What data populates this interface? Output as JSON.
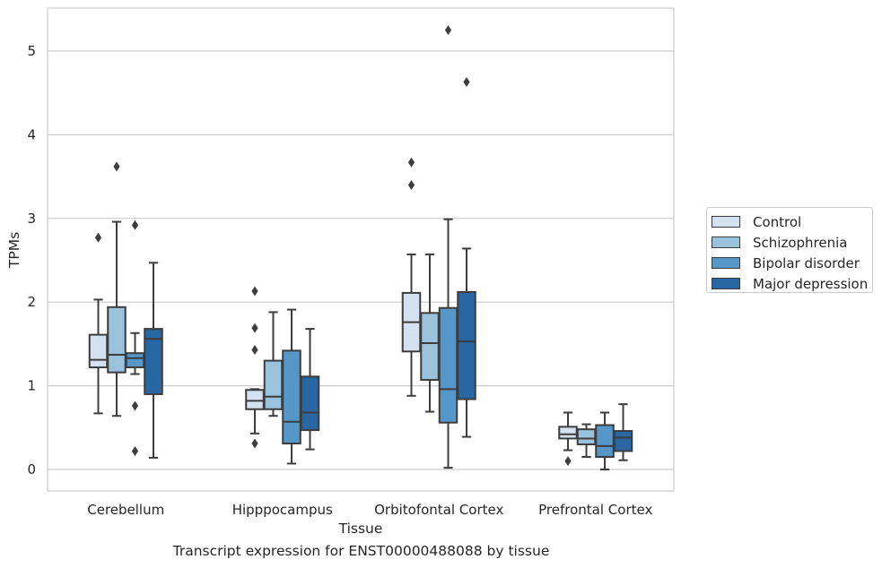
{
  "caption": "Transcript expression for ENST00000488088 by tissue",
  "chart_data": {
    "type": "box",
    "xlabel": "Tissue",
    "ylabel": "TPMs",
    "ylim": [
      -0.25,
      5.52
    ],
    "yticks": [
      0,
      1,
      2,
      3,
      4,
      5
    ],
    "grid": "horizontal",
    "legend_position": "right",
    "categories": [
      "Cerebellum",
      "Hipppocampus",
      "Orbitofontal Cortex",
      "Prefrontal Cortex"
    ],
    "series": [
      {
        "name": "Control",
        "color": "#d4e1f0",
        "boxes": [
          {
            "whisker_low": 0.67,
            "q1": 1.22,
            "median": 1.31,
            "q3": 1.61,
            "whisker_high": 2.03,
            "outliers": [
              2.77
            ]
          },
          {
            "whisker_low": 0.43,
            "q1": 0.72,
            "median": 0.82,
            "q3": 0.95,
            "whisker_high": 0.96,
            "outliers": [
              2.13,
              1.69,
              1.43,
              0.31
            ]
          },
          {
            "whisker_low": 0.88,
            "q1": 1.41,
            "median": 1.76,
            "q3": 2.11,
            "whisker_high": 2.57,
            "outliers": [
              3.67,
              3.4
            ]
          },
          {
            "whisker_low": 0.23,
            "q1": 0.37,
            "median": 0.42,
            "q3": 0.51,
            "whisker_high": 0.68,
            "outliers": [
              0.1
            ]
          }
        ]
      },
      {
        "name": "Schizophrenia",
        "color": "#9ac2dd",
        "boxes": [
          {
            "whisker_low": 0.64,
            "q1": 1.16,
            "median": 1.37,
            "q3": 1.94,
            "whisker_high": 2.96,
            "outliers": [
              3.62
            ]
          },
          {
            "whisker_low": 0.64,
            "q1": 0.72,
            "median": 0.87,
            "q3": 1.3,
            "whisker_high": 1.88,
            "outliers": []
          },
          {
            "whisker_low": 0.69,
            "q1": 1.07,
            "median": 1.51,
            "q3": 1.87,
            "whisker_high": 2.57,
            "outliers": []
          },
          {
            "whisker_low": 0.15,
            "q1": 0.3,
            "median": 0.37,
            "q3": 0.48,
            "whisker_high": 0.54,
            "outliers": []
          }
        ]
      },
      {
        "name": "Bipolar disorder",
        "color": "#5497c8",
        "boxes": [
          {
            "whisker_low": 1.14,
            "q1": 1.22,
            "median": 1.33,
            "q3": 1.39,
            "whisker_high": 1.63,
            "outliers": [
              2.92,
              0.76,
              0.22
            ]
          },
          {
            "whisker_low": 0.07,
            "q1": 0.31,
            "median": 0.57,
            "q3": 1.42,
            "whisker_high": 1.91,
            "outliers": []
          },
          {
            "whisker_low": 0.02,
            "q1": 0.56,
            "median": 0.96,
            "q3": 1.93,
            "whisker_high": 2.99,
            "outliers": [
              5.25
            ]
          },
          {
            "whisker_low": 0.0,
            "q1": 0.15,
            "median": 0.28,
            "q3": 0.53,
            "whisker_high": 0.68,
            "outliers": []
          }
        ]
      },
      {
        "name": "Major depression",
        "color": "#2866a4",
        "boxes": [
          {
            "whisker_low": 0.14,
            "q1": 0.9,
            "median": 1.56,
            "q3": 1.68,
            "whisker_high": 2.47,
            "outliers": []
          },
          {
            "whisker_low": 0.24,
            "q1": 0.47,
            "median": 0.68,
            "q3": 1.11,
            "whisker_high": 1.68,
            "outliers": []
          },
          {
            "whisker_low": 0.39,
            "q1": 0.84,
            "median": 1.53,
            "q3": 2.12,
            "whisker_high": 2.64,
            "outliers": [
              4.63
            ]
          },
          {
            "whisker_low": 0.11,
            "q1": 0.22,
            "median": 0.38,
            "q3": 0.46,
            "whisker_high": 0.78,
            "outliers": []
          }
        ]
      }
    ]
  }
}
